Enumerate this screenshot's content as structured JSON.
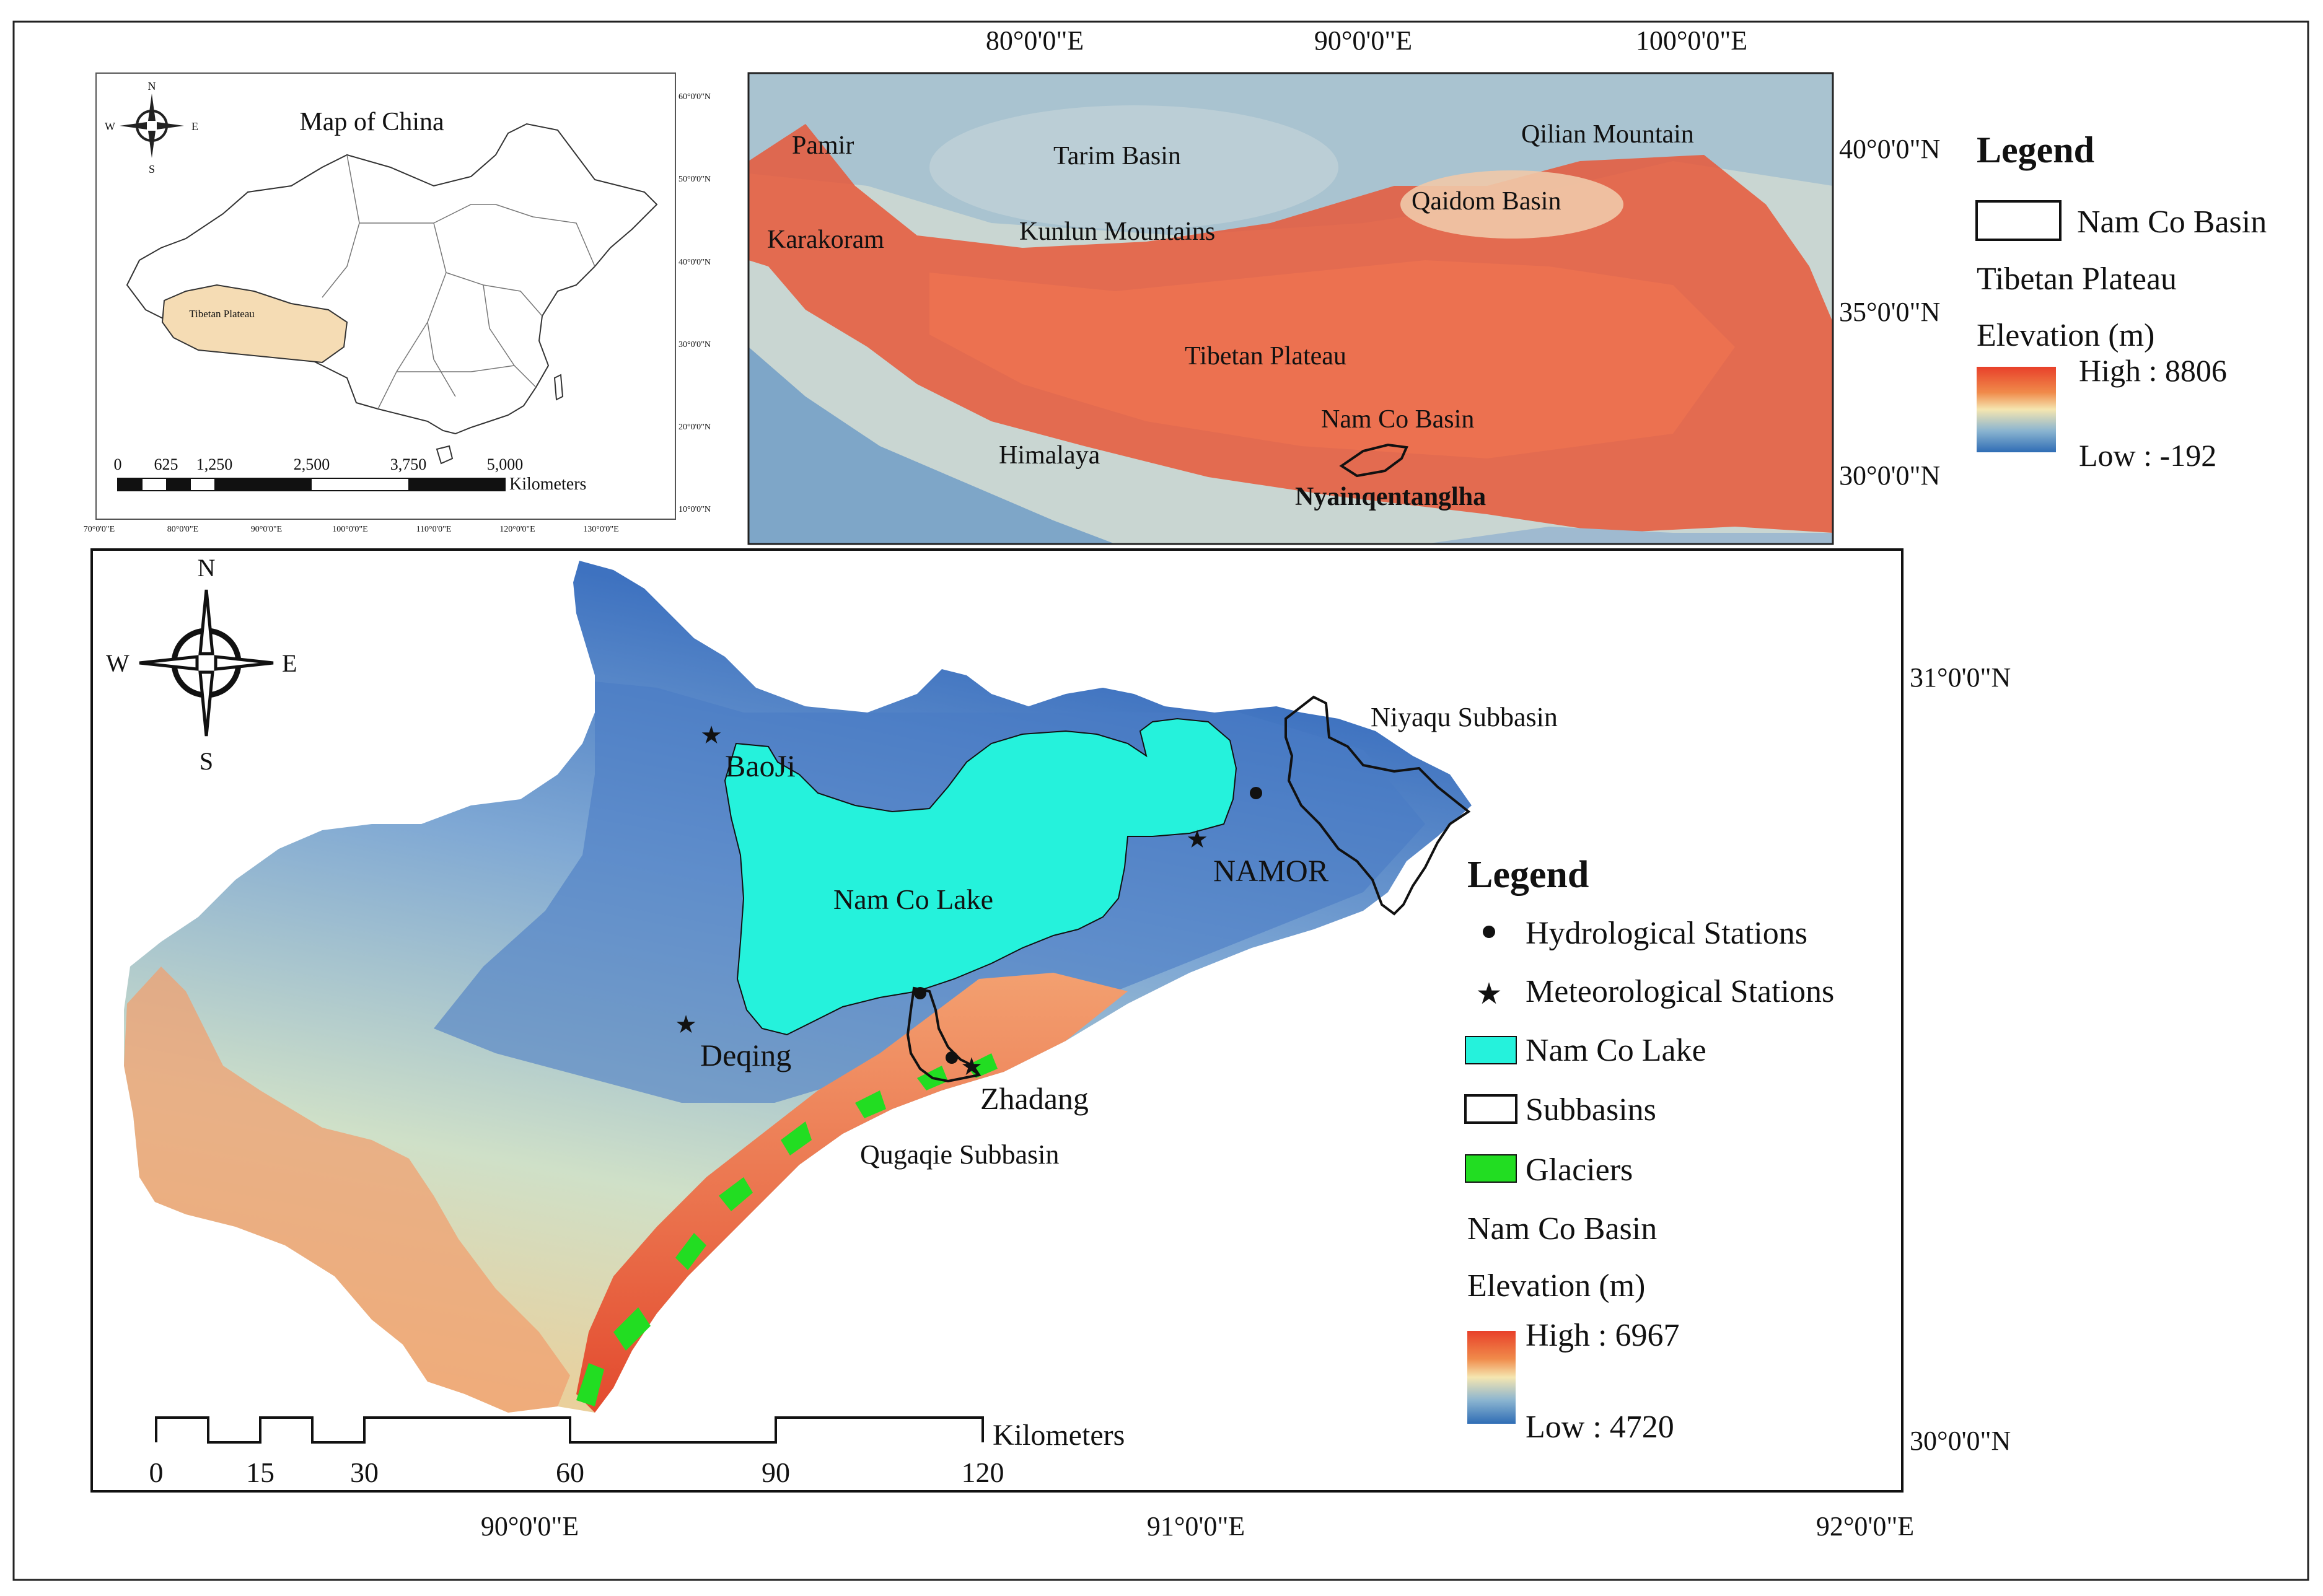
{
  "china_map": {
    "title": "Map of China",
    "highlight_label": "Tibetan Plateau",
    "compass": {
      "n": "N",
      "s": "S",
      "e": "E",
      "w": "W"
    },
    "lat_labels": [
      "60°0'0\"N",
      "50°0'0\"N",
      "40°0'0\"N",
      "30°0'0\"N",
      "20°0'0\"N",
      "10°0'0\"N"
    ],
    "lon_labels": [
      "70°0'0\"E",
      "80°0'0\"E",
      "90°0'0\"E",
      "100°0'0\"E",
      "110°0'0\"E",
      "120°0'0\"E",
      "130°0'0\"E"
    ],
    "scale_ticks": [
      "0",
      "625",
      "1,250",
      "2,500",
      "3,750",
      "5,000"
    ],
    "scale_unit": "Kilometers",
    "highlight_color": "#f5dcb4"
  },
  "plateau_map": {
    "lon_labels": [
      "80°0'0\"E",
      "90°0'0\"E",
      "100°0'0\"E"
    ],
    "lat_labels": [
      "40°0'0\"N",
      "35°0'0\"N",
      "30°0'0\"N"
    ],
    "places": {
      "pamir": "Pamir",
      "tarim": "Tarim Basin",
      "qilian": "Qilian Mountain",
      "qaidom": "Qaidom Basin",
      "karakoram": "Karakoram",
      "kunlun": "Kunlun Mountains",
      "tibetan": "Tibetan Plateau",
      "namco_basin": "Nam Co Basin",
      "himalaya": "Himalaya",
      "nyainqen": "Nyainqentanglha"
    }
  },
  "top_legend": {
    "title": "Legend",
    "basin_item": "Nam Co Basin",
    "elev_title_1": "Tibetan Plateau",
    "elev_title_2": "Elevation (m)",
    "high": "High : 8806",
    "low": "Low : -192"
  },
  "basin_map": {
    "compass": {
      "n": "N",
      "s": "S",
      "e": "E",
      "w": "W"
    },
    "lat_labels": [
      "31°0'0\"N",
      "30°0'0\"N"
    ],
    "lon_labels": [
      "90°0'0\"E",
      "91°0'0\"E",
      "92°0'0\"E"
    ],
    "lake_label": "Nam Co Lake",
    "stations": {
      "baoji": "BaoJi",
      "namor": "NAMOR",
      "deqing": "Deqing",
      "zhadang": "Zhadang"
    },
    "subbasins": {
      "niyaqu": "Niyaqu Subbasin",
      "qugaqie": "Qugaqie Subbasin"
    },
    "scale_ticks": [
      "0",
      "15",
      "30",
      "60",
      "90",
      "120"
    ],
    "scale_unit": "Kilometers",
    "lake_color": "#25f2dc",
    "glacier_color": "#22dd22"
  },
  "bottom_legend": {
    "title": "Legend",
    "hydro": "Hydrological Stations",
    "meteo": "Meteorological Stations",
    "lake": "Nam Co Lake",
    "subbasins": "Subbasins",
    "glaciers": "Glaciers",
    "elev_title_1": "Nam Co Basin",
    "elev_title_2": "Elevation (m)",
    "high": "High : 6967",
    "low": "Low : 4720"
  }
}
